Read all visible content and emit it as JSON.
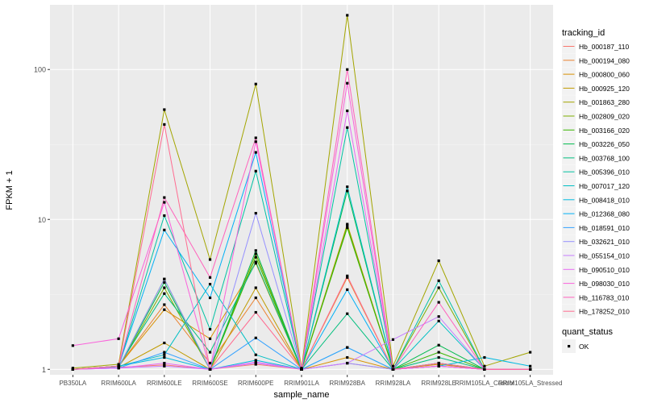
{
  "chart_data": {
    "type": "line",
    "y_scale": "log10",
    "ylabel": "FPKM + 1",
    "xlabel": "sample_name",
    "categories": [
      "PB350LA",
      "RRIM600LA",
      "RRIM600LE",
      "RRIM600SE",
      "RRIM600PE",
      "RRIM901LA",
      "RRIM928BA",
      "RRIM928LA",
      "RRIM928LE",
      "RRIM105LA_Control",
      "RRIM105LA_Stressed"
    ],
    "y_ticks": [
      1,
      10,
      100
    ],
    "ylim": [
      0.92,
      270
    ],
    "legend": {
      "title": "tracking_id",
      "position": "right"
    },
    "legend2": {
      "title": "quant_status",
      "entries": [
        "OK"
      ]
    },
    "series": [
      {
        "name": "Hb_000187_110",
        "color": "#F8766D",
        "values": [
          1.0,
          1.03,
          1.07,
          1.0,
          1.08,
          1.0,
          1.1,
          1.0,
          1.05,
          1.0,
          1.0
        ]
      },
      {
        "name": "Hb_000194_080",
        "color": "#EA8331",
        "values": [
          1.0,
          1.05,
          2.7,
          1.1,
          3.0,
          1.0,
          4.1,
          1.0,
          1.1,
          1.0,
          1.0
        ]
      },
      {
        "name": "Hb_000800_060",
        "color": "#D89000",
        "values": [
          1.0,
          1.05,
          2.5,
          1.6,
          5.1,
          1.0,
          1.2,
          1.0,
          1.08,
          1.0,
          1.0
        ]
      },
      {
        "name": "Hb_000925_120",
        "color": "#C09B00",
        "values": [
          1.0,
          1.03,
          1.5,
          1.0,
          3.5,
          1.0,
          9.3,
          1.0,
          1.1,
          1.0,
          1.0
        ]
      },
      {
        "name": "Hb_001863_280",
        "color": "#A3A500",
        "values": [
          1.02,
          1.08,
          54.0,
          5.4,
          80.0,
          1.02,
          230.0,
          1.05,
          5.3,
          1.05,
          1.3
        ]
      },
      {
        "name": "Hb_002809_020",
        "color": "#7CAE00",
        "values": [
          1.0,
          1.03,
          3.5,
          1.0,
          5.9,
          1.0,
          9.1,
          1.0,
          3.5,
          1.0,
          1.0
        ]
      },
      {
        "name": "Hb_003166_020",
        "color": "#39B600",
        "values": [
          1.0,
          1.03,
          4.0,
          1.0,
          5.6,
          1.0,
          8.8,
          1.0,
          1.3,
          1.0,
          1.0
        ]
      },
      {
        "name": "Hb_003226_050",
        "color": "#00BB4E",
        "values": [
          1.0,
          1.03,
          3.8,
          1.0,
          6.2,
          1.0,
          15.5,
          1.0,
          1.45,
          1.0,
          1.0
        ]
      },
      {
        "name": "Hb_003768_100",
        "color": "#00BF7D",
        "values": [
          1.0,
          1.05,
          3.2,
          1.3,
          5.2,
          1.0,
          2.35,
          1.0,
          1.2,
          1.0,
          1.0
        ]
      },
      {
        "name": "Hb_005396_010",
        "color": "#00C1A3",
        "values": [
          1.0,
          1.05,
          10.6,
          1.85,
          21.0,
          1.0,
          41.0,
          1.0,
          3.9,
          1.0,
          1.0
        ]
      },
      {
        "name": "Hb_007017_120",
        "color": "#00BFC4",
        "values": [
          1.0,
          1.05,
          1.25,
          3.7,
          1.25,
          1.0,
          16.5,
          1.0,
          2.1,
          1.0,
          1.0
        ]
      },
      {
        "name": "Hb_008418_010",
        "color": "#00BAE0",
        "values": [
          1.0,
          1.05,
          1.2,
          1.0,
          1.15,
          1.0,
          1.4,
          1.0,
          1.05,
          1.2,
          1.05
        ]
      },
      {
        "name": "Hb_012368_080",
        "color": "#00B0F6",
        "values": [
          1.0,
          1.05,
          8.5,
          3.0,
          28.0,
          1.0,
          3.4,
          1.0,
          1.1,
          1.0,
          1.0
        ]
      },
      {
        "name": "Hb_018591_010",
        "color": "#35A2FF",
        "values": [
          1.0,
          1.02,
          1.3,
          1.0,
          1.62,
          1.0,
          1.4,
          1.0,
          1.05,
          1.0,
          1.0
        ]
      },
      {
        "name": "Hb_032621_010",
        "color": "#9590FF",
        "values": [
          1.0,
          1.03,
          4.0,
          1.0,
          11.0,
          1.0,
          1.1,
          1.0,
          1.05,
          1.0,
          1.0
        ]
      },
      {
        "name": "Hb_055154_010",
        "color": "#C77CFF",
        "values": [
          1.0,
          1.02,
          1.05,
          1.0,
          1.1,
          1.0,
          1.1,
          1.58,
          2.25,
          1.0,
          1.0
        ]
      },
      {
        "name": "Hb_090510_010",
        "color": "#E76BF3",
        "values": [
          1.0,
          1.02,
          1.1,
          1.0,
          1.12,
          1.0,
          53.0,
          1.0,
          1.05,
          1.0,
          1.0
        ]
      },
      {
        "name": "Hb_098030_010",
        "color": "#FA62DB",
        "values": [
          1.44,
          1.6,
          13.0,
          1.0,
          33.0,
          1.0,
          81.0,
          1.0,
          1.05,
          1.0,
          1.0
        ]
      },
      {
        "name": "Hb_116783_010",
        "color": "#FF62BC",
        "values": [
          1.0,
          1.05,
          14.0,
          4.1,
          35.0,
          1.0,
          100.0,
          1.0,
          2.8,
          1.0,
          1.0
        ]
      },
      {
        "name": "Hb_178252_010",
        "color": "#FF6C91",
        "values": [
          1.0,
          1.05,
          43.0,
          1.0,
          2.4,
          1.0,
          4.2,
          1.0,
          1.1,
          1.0,
          1.0
        ]
      }
    ]
  }
}
